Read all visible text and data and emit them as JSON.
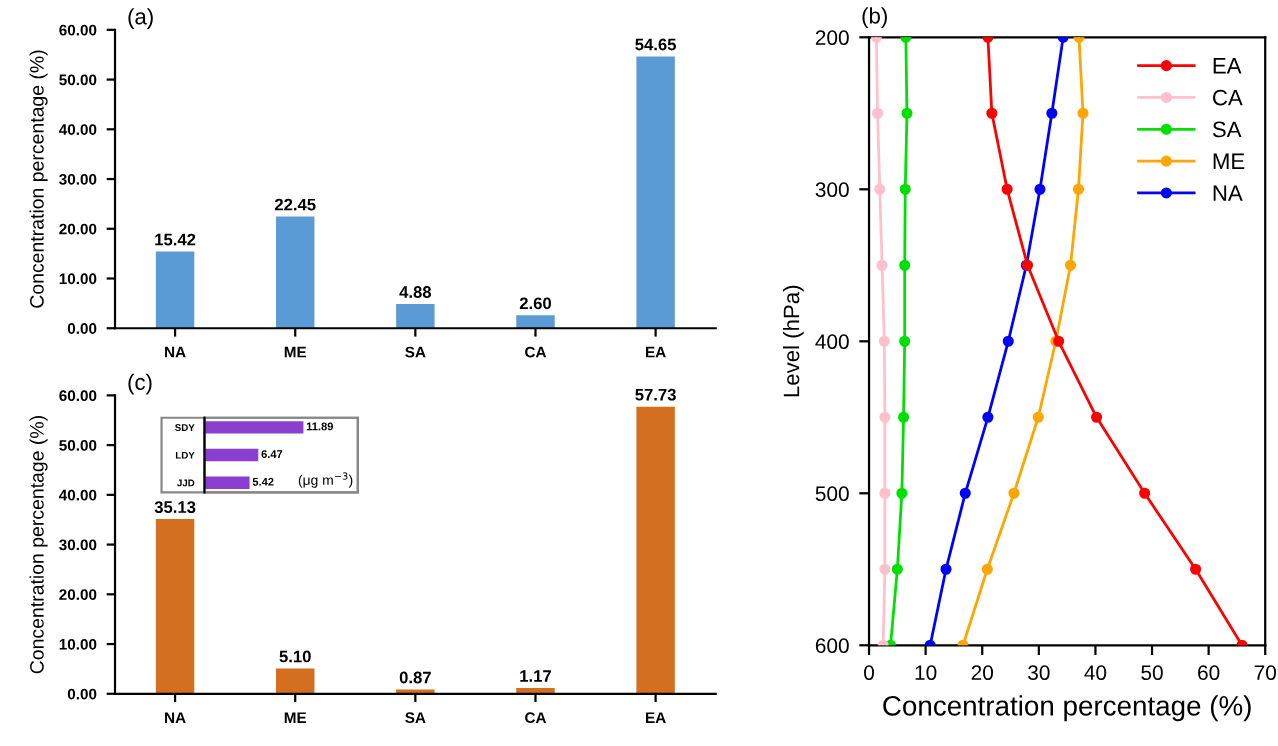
{
  "chart_data": [
    {
      "type": "bar",
      "title": "(a)",
      "categories": [
        "NA",
        "ME",
        "SA",
        "CA",
        "EA"
      ],
      "values": [
        15.42,
        22.45,
        4.88,
        2.6,
        54.65
      ],
      "value_labels": [
        "15.42",
        "22.45",
        "4.88",
        "2.60",
        "54.65"
      ],
      "color": "#5b9bd5",
      "ylabel": "Concentration percentage (%)",
      "ylim": [
        0,
        60
      ],
      "yticks": [
        {
          "value": 0,
          "label": "0.00"
        },
        {
          "value": 10,
          "label": "10.00"
        },
        {
          "value": 20,
          "label": "20.00"
        },
        {
          "value": 30,
          "label": "30.00"
        },
        {
          "value": 40,
          "label": "40.00"
        },
        {
          "value": 50,
          "label": "50.00"
        },
        {
          "value": 60,
          "label": "60.00"
        }
      ]
    },
    {
      "type": "line",
      "title": "(b)",
      "xlabel": "Concentration percentage (%)",
      "ylabel": "Level (hPa)",
      "xlim": [
        0,
        70
      ],
      "xticks": [
        0,
        10,
        20,
        30,
        40,
        50,
        60,
        70
      ],
      "ylim": [
        600,
        200
      ],
      "yticks": [
        200,
        300,
        400,
        500,
        600
      ],
      "marker": "circle",
      "legend": "top right",
      "series": [
        {
          "name": "EA",
          "color": "#ff0000",
          "x": [
            21.0,
            21.7,
            24.4,
            28.0,
            33.5,
            40.2,
            48.7,
            57.7,
            65.9
          ],
          "values": [
            200,
            250,
            300,
            350,
            400,
            450,
            500,
            550,
            600
          ]
        },
        {
          "name": "CA",
          "color": "#ffc0cb",
          "x": [
            1.3,
            1.5,
            1.9,
            2.3,
            2.7,
            2.8,
            2.8,
            2.8,
            2.5
          ],
          "values": [
            200,
            250,
            300,
            350,
            400,
            450,
            500,
            550,
            600
          ]
        },
        {
          "name": "SA",
          "color": "#00e000",
          "x": [
            6.5,
            6.7,
            6.4,
            6.3,
            6.3,
            6.1,
            5.8,
            5.0,
            3.8
          ],
          "values": [
            200,
            250,
            300,
            350,
            400,
            450,
            500,
            550,
            600
          ]
        },
        {
          "name": "ME",
          "color": "#ffa500",
          "x": [
            37.1,
            37.8,
            37.0,
            35.6,
            33.0,
            29.9,
            25.6,
            20.9,
            16.6
          ],
          "values": [
            200,
            250,
            300,
            350,
            400,
            450,
            500,
            550,
            600
          ]
        },
        {
          "name": "NA",
          "color": "#0000ff",
          "x": [
            34.3,
            32.3,
            30.2,
            27.8,
            24.6,
            21.0,
            17.0,
            13.6,
            10.8
          ],
          "values": [
            200,
            250,
            300,
            350,
            400,
            450,
            500,
            550,
            600
          ]
        }
      ]
    },
    {
      "type": "bar",
      "title": "(c)",
      "categories": [
        "NA",
        "ME",
        "SA",
        "CA",
        "EA"
      ],
      "values": [
        35.13,
        5.1,
        0.87,
        1.17,
        57.73
      ],
      "value_labels": [
        "35.13",
        "5.10",
        "0.87",
        "1.17",
        "57.73"
      ],
      "color": "#d46f1f",
      "ylabel": "Concentration percentage (%)",
      "ylim": [
        0,
        60
      ],
      "yticks": [
        {
          "value": 0,
          "label": "0.00"
        },
        {
          "value": 10,
          "label": "10.00"
        },
        {
          "value": 20,
          "label": "20.00"
        },
        {
          "value": 30,
          "label": "30.00"
        },
        {
          "value": 40,
          "label": "40.00"
        },
        {
          "value": 50,
          "label": "50.00"
        },
        {
          "value": 60,
          "label": "60.00"
        }
      ]
    },
    {
      "type": "bar",
      "orientation": "horizontal",
      "categories": [
        "SDY",
        "LDY",
        "JJD"
      ],
      "values": [
        11.89,
        6.47,
        5.42
      ],
      "data_labels": true,
      "color": "#8b3fd1",
      "xlabel": "(μg m$^{−3}$)",
      "tick_labels": "y"
    }
  ]
}
